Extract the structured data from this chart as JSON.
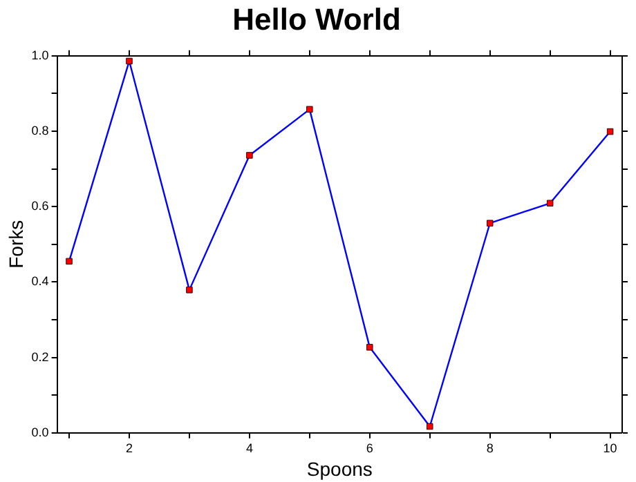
{
  "chart_data": {
    "type": "line",
    "title": "Hello World",
    "xlabel": "Spoons",
    "ylabel": "Forks",
    "x": [
      1,
      2,
      3,
      4,
      5,
      6,
      7,
      8,
      9,
      10
    ],
    "series": [
      {
        "color": "#0000ff",
        "values": [
          0.455,
          0.986,
          0.379,
          0.736,
          0.858,
          0.227,
          0.017,
          0.556,
          0.609,
          0.799
        ]
      }
    ],
    "xlim": [
      0.8,
      10.2
    ],
    "ylim": [
      0,
      1
    ],
    "xticks": [
      {
        "value": 1,
        "label": null
      },
      2,
      {
        "value": 3,
        "label": null
      },
      4,
      {
        "value": 5,
        "label": null
      },
      6,
      {
        "value": 7,
        "label": null
      },
      8,
      {
        "value": 9,
        "label": null
      },
      10
    ],
    "yticks": [
      {
        "value": 0,
        "label": "0.0"
      },
      {
        "value": 0.1,
        "label": null
      },
      0.2,
      {
        "value": 0.3,
        "label": null
      },
      0.4,
      {
        "value": 0.5,
        "label": null
      },
      0.6,
      {
        "value": 0.7,
        "label": null
      },
      0.8,
      {
        "value": 0.9,
        "label": null
      },
      {
        "value": 1,
        "label": "1.0"
      }
    ],
    "grid": false,
    "legend": false,
    "marker": "square",
    "line_style": "solid"
  }
}
